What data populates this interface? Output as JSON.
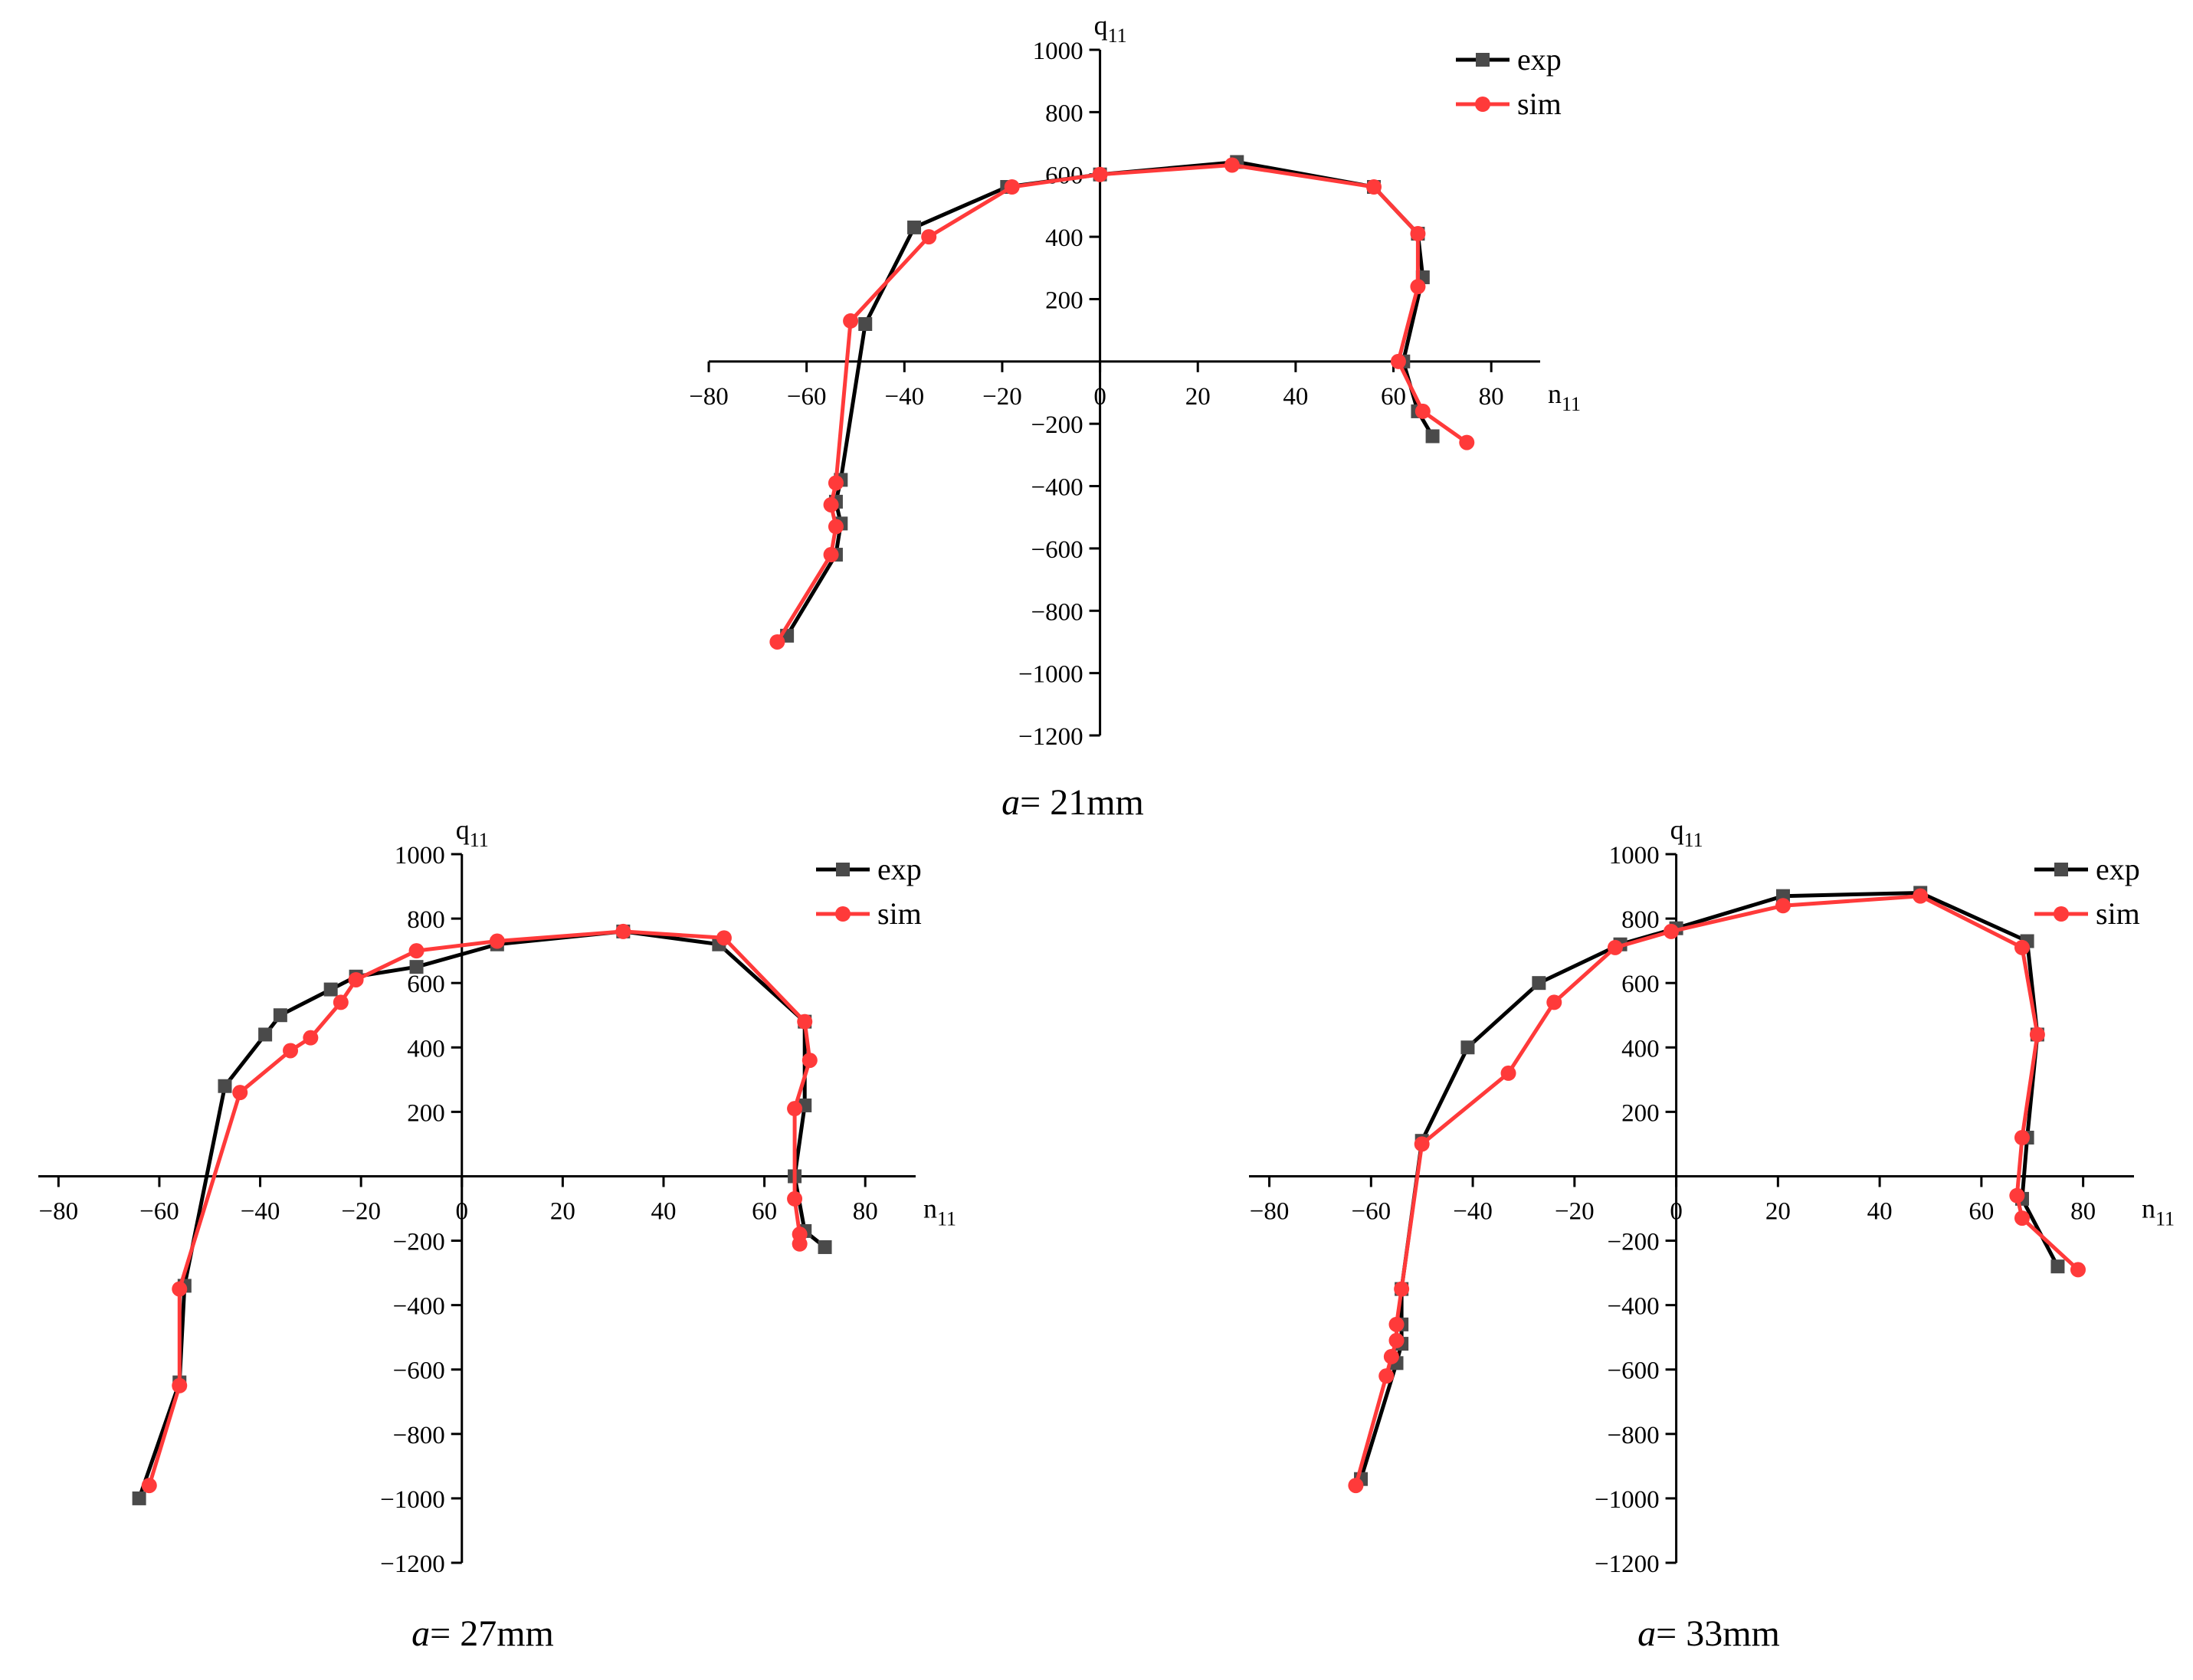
{
  "chart_data": [
    {
      "type": "line",
      "caption_var": "a",
      "caption_value": "= 21mm",
      "xlabel": "n11",
      "ylabel": "q11",
      "xlim": [
        -80,
        90
      ],
      "ylim": [
        -1200,
        1000
      ],
      "x_ticks": [
        -80,
        -60,
        -40,
        -20,
        0,
        20,
        40,
        60,
        80
      ],
      "y_ticks": [
        1000,
        800,
        600,
        400,
        200,
        -200,
        -400,
        -600,
        -800,
        -1000,
        -1200
      ],
      "legend": "top-right",
      "series": [
        {
          "name": "exp",
          "color": "#000000",
          "marker": "square",
          "points": [
            [
              -64,
              -880
            ],
            [
              -54,
              -620
            ],
            [
              -53,
              -520
            ],
            [
              -54,
              -450
            ],
            [
              -53,
              -380
            ],
            [
              -48,
              120
            ],
            [
              -38,
              430
            ],
            [
              -19,
              560
            ],
            [
              0,
              600
            ],
            [
              28,
              640
            ],
            [
              56,
              560
            ],
            [
              65,
              410
            ],
            [
              66,
              270
            ],
            [
              62,
              0
            ],
            [
              65,
              -160
            ],
            [
              68,
              -240
            ]
          ]
        },
        {
          "name": "sim",
          "color": "#ff3a3a",
          "marker": "circle",
          "points": [
            [
              -66,
              -900
            ],
            [
              -55,
              -620
            ],
            [
              -54,
              -530
            ],
            [
              -55,
              -460
            ],
            [
              -54,
              -390
            ],
            [
              -51,
              130
            ],
            [
              -35,
              400
            ],
            [
              -18,
              560
            ],
            [
              0,
              600
            ],
            [
              27,
              630
            ],
            [
              56,
              560
            ],
            [
              65,
              410
            ],
            [
              65,
              240
            ],
            [
              61,
              0
            ],
            [
              66,
              -160
            ],
            [
              75,
              -260
            ]
          ]
        }
      ]
    },
    {
      "type": "line",
      "caption_var": "a",
      "caption_value": "= 27mm",
      "xlabel": "n11",
      "ylabel": "q11",
      "xlim": [
        -84,
        90
      ],
      "ylim": [
        -1200,
        1000
      ],
      "x_ticks": [
        -80,
        -60,
        -40,
        -20,
        0,
        20,
        40,
        60,
        80
      ],
      "y_ticks": [
        1000,
        800,
        600,
        400,
        200,
        -200,
        -400,
        -600,
        -800,
        -1000,
        -1200
      ],
      "legend": "top-right",
      "series": [
        {
          "name": "exp",
          "color": "#000000",
          "marker": "square",
          "points": [
            [
              -64,
              -1000
            ],
            [
              -56,
              -640
            ],
            [
              -55,
              -340
            ],
            [
              -47,
              280
            ],
            [
              -39,
              440
            ],
            [
              -36,
              500
            ],
            [
              -26,
              580
            ],
            [
              -21,
              620
            ],
            [
              -9,
              650
            ],
            [
              7,
              720
            ],
            [
              32,
              760
            ],
            [
              51,
              720
            ],
            [
              68,
              480
            ],
            [
              68,
              220
            ],
            [
              66,
              0
            ],
            [
              68,
              -170
            ],
            [
              72,
              -220
            ]
          ]
        },
        {
          "name": "sim",
          "color": "#ff3a3a",
          "marker": "circle",
          "points": [
            [
              -62,
              -960
            ],
            [
              -56,
              -650
            ],
            [
              -56,
              -350
            ],
            [
              -44,
              260
            ],
            [
              -34,
              390
            ],
            [
              -30,
              430
            ],
            [
              -24,
              540
            ],
            [
              -21,
              610
            ],
            [
              -9,
              700
            ],
            [
              7,
              730
            ],
            [
              32,
              760
            ],
            [
              52,
              740
            ],
            [
              68,
              480
            ],
            [
              69,
              360
            ],
            [
              66,
              210
            ],
            [
              66,
              -70
            ],
            [
              67,
              -180
            ],
            [
              67,
              -210
            ]
          ]
        }
      ]
    },
    {
      "type": "line",
      "caption_var": "a",
      "caption_value": "= 33mm",
      "xlabel": "n11",
      "ylabel": "q11",
      "xlim": [
        -84,
        90
      ],
      "ylim": [
        -1200,
        1000
      ],
      "x_ticks": [
        -80,
        -60,
        -40,
        -20,
        0,
        20,
        40,
        60,
        80
      ],
      "y_ticks": [
        1000,
        800,
        600,
        400,
        200,
        -200,
        -400,
        -600,
        -800,
        -1000,
        -1200
      ],
      "legend": "top-right",
      "series": [
        {
          "name": "exp",
          "color": "#000000",
          "marker": "square",
          "points": [
            [
              -62,
              -940
            ],
            [
              -55,
              -580
            ],
            [
              -54,
              -520
            ],
            [
              -54,
              -460
            ],
            [
              -54,
              -350
            ],
            [
              -50,
              110
            ],
            [
              -41,
              400
            ],
            [
              -27,
              600
            ],
            [
              -11,
              720
            ],
            [
              0,
              770
            ],
            [
              21,
              870
            ],
            [
              48,
              880
            ],
            [
              69,
              730
            ],
            [
              71,
              440
            ],
            [
              69,
              120
            ],
            [
              68,
              -70
            ],
            [
              75,
              -280
            ]
          ]
        },
        {
          "name": "sim",
          "color": "#ff3a3a",
          "marker": "circle",
          "points": [
            [
              -63,
              -960
            ],
            [
              -57,
              -620
            ],
            [
              -56,
              -560
            ],
            [
              -55,
              -510
            ],
            [
              -55,
              -460
            ],
            [
              -54,
              -350
            ],
            [
              -50,
              100
            ],
            [
              -33,
              320
            ],
            [
              -24,
              540
            ],
            [
              -12,
              710
            ],
            [
              -1,
              760
            ],
            [
              21,
              840
            ],
            [
              48,
              870
            ],
            [
              68,
              710
            ],
            [
              71,
              440
            ],
            [
              68,
              120
            ],
            [
              67,
              -60
            ],
            [
              68,
              -130
            ],
            [
              79,
              -290
            ]
          ]
        }
      ]
    }
  ]
}
